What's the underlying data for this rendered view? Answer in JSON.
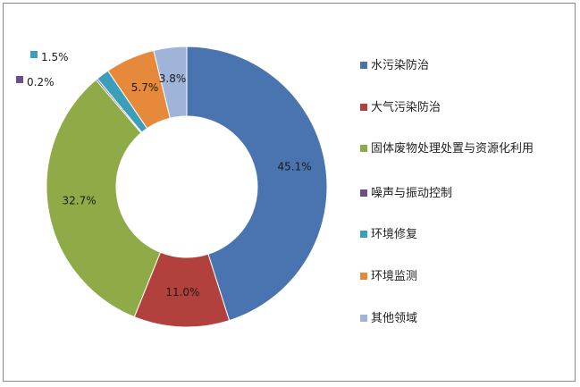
{
  "chart_data": {
    "type": "pie",
    "donut": true,
    "categories": [
      "水污染防治",
      "大气污染防治",
      "固体废物处理处置与资源化利用",
      "噪声与振动控制",
      "环境修复",
      "环境监测",
      "其他领域"
    ],
    "values": [
      45.1,
      11.0,
      32.7,
      0.2,
      1.5,
      5.7,
      3.8
    ],
    "labels": [
      "45.1%",
      "11.0%",
      "32.7%",
      "0.2%",
      "1.5%",
      "5.7%",
      "3.8%"
    ],
    "colors": [
      "#4a74b0",
      "#b2413e",
      "#8fab47",
      "#6a4f88",
      "#3b9fb9",
      "#e6893a",
      "#a0b4da"
    ],
    "legend": "right"
  }
}
